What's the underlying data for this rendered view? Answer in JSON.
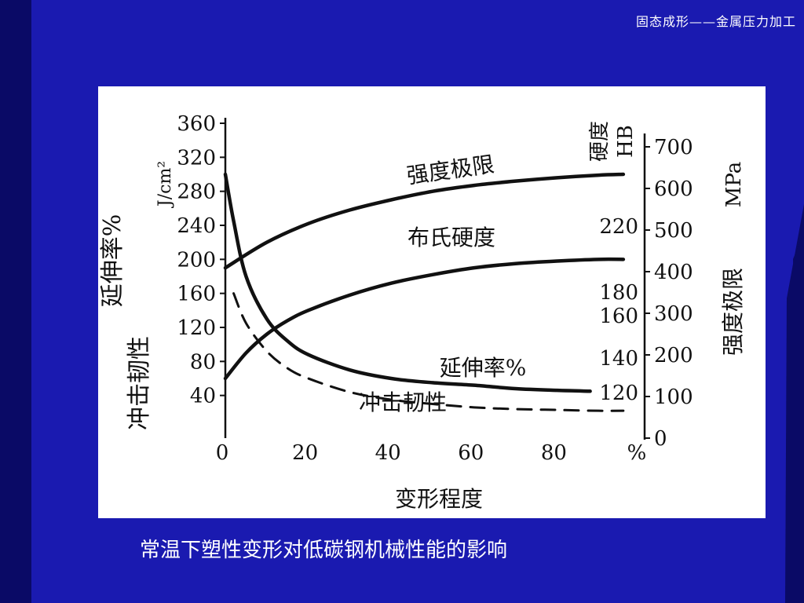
{
  "header": {
    "title": "固态成形——金属压力加工"
  },
  "caption": "常温下塑性变形对低碳钢机械性能的影响",
  "colors": {
    "background": "#1a1ab0",
    "left_bar": "#0a0a66",
    "figure_bg": "#ffffff",
    "ink": "#111111"
  },
  "chart_data": {
    "type": "line",
    "title": "",
    "xlabel": "变形程度",
    "x_ticks": [
      "0",
      "20",
      "40",
      "60",
      "80",
      "%"
    ],
    "xlim": [
      0,
      100
    ],
    "left_axis": {
      "label_outer": "冲击韧性",
      "label_outer2": "延伸率%",
      "unit": "J/cm²",
      "ticks": [
        "360",
        "320",
        "280",
        "240",
        "200",
        "160",
        "120",
        "80",
        "40"
      ],
      "ylim": [
        0,
        360
      ]
    },
    "right_axis_hb": {
      "label": "硬度",
      "unit": "HB",
      "ticks": [
        "220",
        "180",
        "160",
        "140",
        "120"
      ]
    },
    "right_axis_mpa": {
      "label": "强度极限",
      "unit": "MPa",
      "ticks": [
        "700",
        "600",
        "500",
        "400",
        "300",
        "200",
        "100",
        "0"
      ],
      "ylim": [
        0,
        700
      ]
    },
    "series": [
      {
        "name": "强度极限",
        "style": "solid",
        "x": [
          0,
          10,
          20,
          30,
          40,
          50,
          60,
          70,
          80,
          90,
          96
        ],
        "y": [
          190,
          220,
          242,
          258,
          270,
          280,
          287,
          292,
          296,
          299,
          300
        ]
      },
      {
        "name": "布氏硬度",
        "style": "solid",
        "x": [
          0,
          5,
          10,
          15,
          20,
          30,
          40,
          50,
          60,
          70,
          80,
          90,
          96
        ],
        "y": [
          60,
          90,
          112,
          128,
          140,
          158,
          172,
          182,
          190,
          195,
          198,
          200,
          200
        ]
      },
      {
        "name": "延伸率%",
        "style": "solid",
        "x": [
          0,
          2,
          5,
          10,
          15,
          20,
          30,
          40,
          50,
          60,
          70,
          80,
          88
        ],
        "y": [
          300,
          245,
          180,
          130,
          104,
          88,
          70,
          60,
          55,
          52,
          48,
          46,
          45
        ]
      },
      {
        "name": "冲击韧性",
        "style": "dashed",
        "x": [
          2,
          5,
          10,
          15,
          20,
          30,
          40,
          50,
          60,
          70,
          80,
          90,
          96
        ],
        "y": [
          160,
          125,
          92,
          72,
          60,
          44,
          35,
          30,
          26,
          24,
          23,
          22,
          22
        ]
      }
    ]
  }
}
